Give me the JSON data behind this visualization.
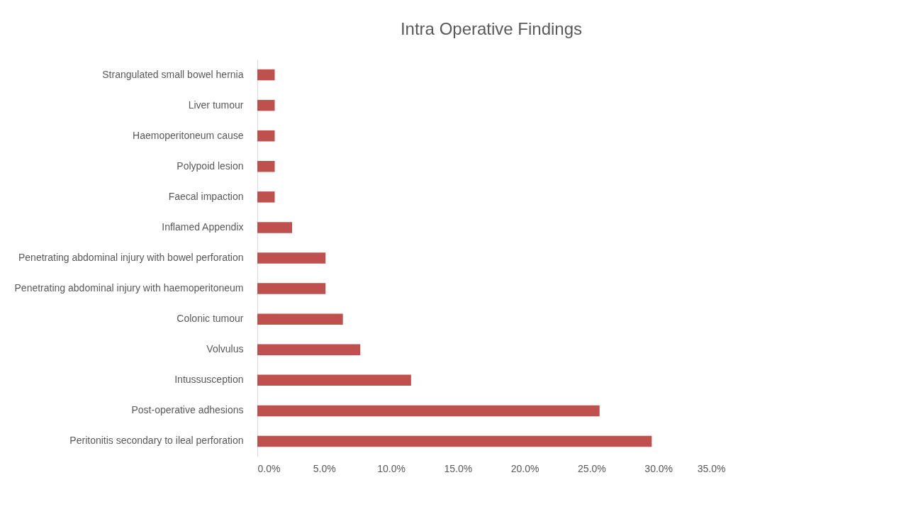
{
  "chart_data": {
    "type": "bar",
    "orientation": "horizontal",
    "title": "Intra Operative Findings",
    "categories": [
      "Strangulated small bowel hernia",
      "Liver tumour",
      "Haemoperitoneum cause",
      "Polypoid lesion",
      "Faecal impaction",
      "Inflamed Appendix",
      "Penetrating abdominal injury with bowel perforation",
      "Penetrating abdominal injury with haemoperitoneum",
      "Colonic tumour",
      "Volvulus",
      "Intussusception",
      "Post-operative adhesions",
      "Peritonitis secondary to ileal perforation"
    ],
    "values": [
      1.3,
      1.3,
      1.3,
      1.3,
      1.3,
      2.6,
      5.1,
      5.1,
      6.4,
      7.7,
      11.5,
      25.6,
      29.5
    ],
    "color": "#c0504d",
    "xlim": [
      0,
      35
    ],
    "xticks": [
      {
        "value": 0,
        "label": "0.0%"
      },
      {
        "value": 5,
        "label": "5.0%"
      },
      {
        "value": 10,
        "label": "10.0%"
      },
      {
        "value": 15,
        "label": "15.0%"
      },
      {
        "value": 20,
        "label": "20.0%"
      },
      {
        "value": 25,
        "label": "25.0%"
      },
      {
        "value": 30,
        "label": "30.0%"
      },
      {
        "value": 35,
        "label": "35.0%"
      }
    ],
    "grid": false
  }
}
